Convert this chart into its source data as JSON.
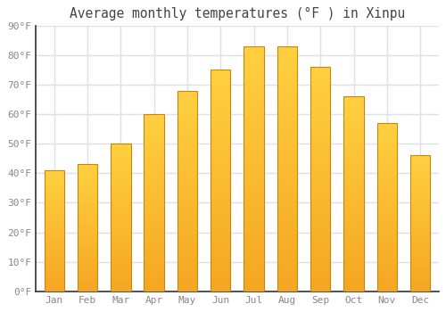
{
  "title": "Average monthly temperatures (°F ) in Xinpu",
  "months": [
    "Jan",
    "Feb",
    "Mar",
    "Apr",
    "May",
    "Jun",
    "Jul",
    "Aug",
    "Sep",
    "Oct",
    "Nov",
    "Dec"
  ],
  "values": [
    41,
    43,
    50,
    60,
    68,
    75,
    83,
    83,
    76,
    66,
    57,
    46
  ],
  "bar_color_bottom": "#F5A623",
  "bar_color_top": "#FFD040",
  "bar_edge_color": "#C8860A",
  "background_color": "#FFFFFF",
  "plot_bg_color": "#FFFFFF",
  "grid_color": "#E0E0E8",
  "ylim": [
    0,
    90
  ],
  "yticks": [
    0,
    10,
    20,
    30,
    40,
    50,
    60,
    70,
    80,
    90
  ],
  "ytick_labels": [
    "0°F",
    "10°F",
    "20°F",
    "30°F",
    "40°F",
    "50°F",
    "60°F",
    "70°F",
    "80°F",
    "90°F"
  ],
  "title_fontsize": 10.5,
  "tick_fontsize": 8,
  "tick_color": "#888888",
  "title_color": "#444444",
  "font_family": "monospace",
  "bar_width": 0.6
}
